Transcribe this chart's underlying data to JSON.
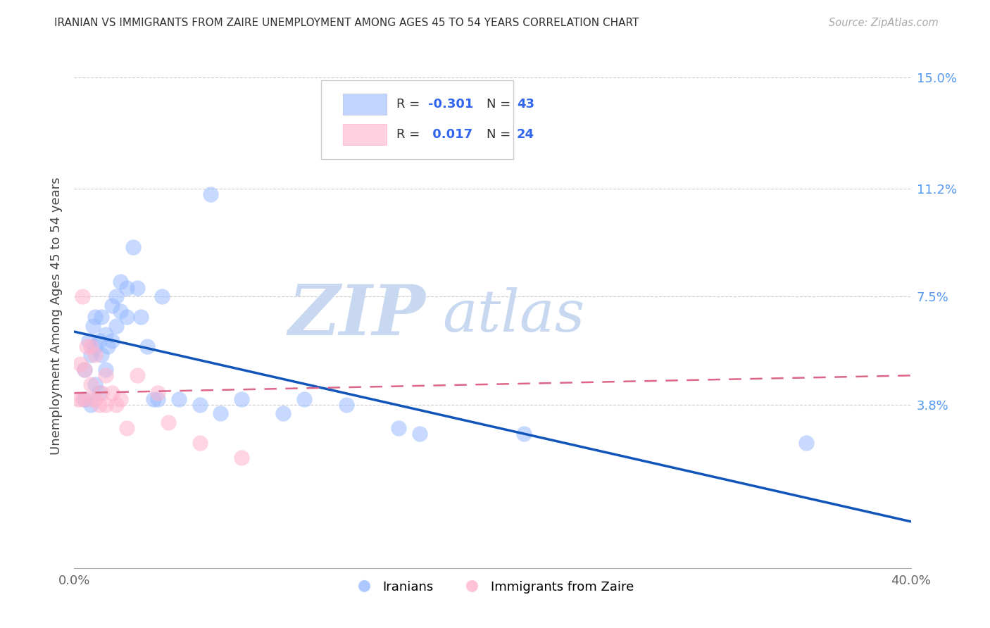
{
  "title": "IRANIAN VS IMMIGRANTS FROM ZAIRE UNEMPLOYMENT AMONG AGES 45 TO 54 YEARS CORRELATION CHART",
  "source": "Source: ZipAtlas.com",
  "ylabel": "Unemployment Among Ages 45 to 54 years",
  "x_min": 0.0,
  "x_max": 0.4,
  "y_min": -0.018,
  "y_max": 0.155,
  "y_ticks_right": [
    0.038,
    0.075,
    0.112,
    0.15
  ],
  "y_tick_labels_right": [
    "3.8%",
    "7.5%",
    "11.2%",
    "15.0%"
  ],
  "blue_color": "#99BBFF",
  "pink_color": "#FFB3CC",
  "blue_line_color": "#1155BB",
  "pink_line_color": "#DD6688",
  "label_iranians": "Iranians",
  "label_zaire": "Immigrants from Zaire",
  "legend_r1_label": "R = ",
  "legend_r1_val": "-0.301",
  "legend_n1_label": "N = ",
  "legend_n1_val": "43",
  "legend_r2_label": "R =  ",
  "legend_r2_val": "0.017",
  "legend_n2_label": "N = ",
  "legend_n2_val": "24",
  "blue_scatter_x": [
    0.005,
    0.005,
    0.007,
    0.008,
    0.008,
    0.009,
    0.01,
    0.01,
    0.01,
    0.012,
    0.012,
    0.013,
    0.013,
    0.015,
    0.015,
    0.016,
    0.018,
    0.018,
    0.02,
    0.02,
    0.022,
    0.022,
    0.025,
    0.025,
    0.028,
    0.03,
    0.032,
    0.035,
    0.038,
    0.04,
    0.042,
    0.05,
    0.06,
    0.065,
    0.07,
    0.08,
    0.1,
    0.11,
    0.13,
    0.155,
    0.165,
    0.215,
    0.35
  ],
  "blue_scatter_y": [
    0.04,
    0.05,
    0.06,
    0.038,
    0.055,
    0.065,
    0.045,
    0.058,
    0.068,
    0.042,
    0.06,
    0.055,
    0.068,
    0.05,
    0.062,
    0.058,
    0.06,
    0.072,
    0.065,
    0.075,
    0.07,
    0.08,
    0.068,
    0.078,
    0.092,
    0.078,
    0.068,
    0.058,
    0.04,
    0.04,
    0.075,
    0.04,
    0.038,
    0.11,
    0.035,
    0.04,
    0.035,
    0.04,
    0.038,
    0.03,
    0.028,
    0.028,
    0.025
  ],
  "pink_scatter_x": [
    0.002,
    0.003,
    0.004,
    0.004,
    0.005,
    0.006,
    0.007,
    0.008,
    0.008,
    0.01,
    0.01,
    0.012,
    0.013,
    0.015,
    0.015,
    0.018,
    0.02,
    0.022,
    0.025,
    0.03,
    0.04,
    0.045,
    0.06,
    0.08
  ],
  "pink_scatter_y": [
    0.04,
    0.052,
    0.04,
    0.075,
    0.05,
    0.058,
    0.04,
    0.045,
    0.058,
    0.04,
    0.055,
    0.038,
    0.042,
    0.038,
    0.048,
    0.042,
    0.038,
    0.04,
    0.03,
    0.048,
    0.042,
    0.032,
    0.025,
    0.02
  ],
  "blue_trendline_x0": 0.0,
  "blue_trendline_y0": 0.063,
  "blue_trendline_x1": 0.4,
  "blue_trendline_y1": -0.002,
  "pink_trendline_x0": 0.0,
  "pink_trendline_y0": 0.042,
  "pink_trendline_x1": 0.4,
  "pink_trendline_y1": 0.048
}
